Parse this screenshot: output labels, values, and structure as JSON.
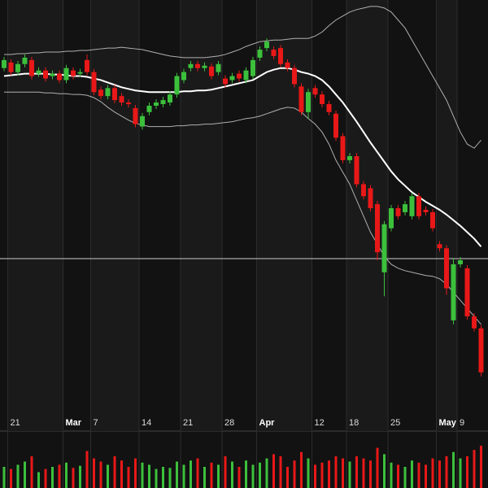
{
  "chart_data": {
    "type": "candlestick",
    "categories": [
      null,
      "21",
      null,
      null,
      null,
      null,
      null,
      null,
      null,
      "Mar",
      null,
      null,
      null,
      "7",
      null,
      null,
      null,
      null,
      null,
      null,
      "14",
      null,
      null,
      null,
      null,
      null,
      "21",
      null,
      null,
      null,
      null,
      null,
      "28",
      null,
      null,
      null,
      null,
      "Apr",
      null,
      null,
      null,
      null,
      null,
      null,
      null,
      "12",
      null,
      null,
      null,
      null,
      "18",
      null,
      null,
      null,
      null,
      null,
      "25",
      null,
      null,
      null,
      null,
      null,
      null,
      "May",
      null,
      null,
      "9",
      null,
      null,
      null
    ],
    "open": [
      435,
      442,
      430,
      440,
      445,
      428,
      432,
      425,
      428,
      420,
      432,
      428,
      445,
      430,
      408,
      400,
      410,
      400,
      392,
      385,
      362,
      380,
      388,
      390,
      392,
      402,
      420,
      435,
      440,
      435,
      437,
      430,
      422,
      420,
      428,
      420,
      425,
      448,
      460,
      458,
      460,
      442,
      435,
      412,
      380,
      410,
      402,
      390,
      378,
      350,
      320,
      325,
      290,
      285,
      265,
      180,
      235,
      260,
      255,
      250,
      275,
      258,
      255,
      215,
      210,
      120,
      190,
      185,
      125,
      110
    ],
    "high": [
      449,
      446,
      444,
      452,
      449,
      436,
      436,
      432,
      432,
      439,
      436,
      434,
      452,
      434,
      412,
      414,
      414,
      404,
      396,
      389,
      379,
      392,
      396,
      399,
      406,
      429,
      434,
      444,
      444,
      442,
      441,
      444,
      426,
      429,
      432,
      436,
      449,
      462,
      472,
      462,
      464,
      446,
      439,
      416,
      409,
      414,
      406,
      394,
      382,
      354,
      329,
      329,
      294,
      289,
      269,
      244,
      264,
      264,
      269,
      279,
      279,
      262,
      259,
      219,
      214,
      198,
      199,
      189,
      129,
      114
    ],
    "low": [
      431,
      426,
      426,
      436,
      421,
      424,
      418,
      421,
      416,
      416,
      421,
      424,
      426,
      401,
      396,
      396,
      391,
      388,
      386,
      361,
      358,
      376,
      384,
      386,
      388,
      398,
      416,
      431,
      431,
      431,
      421,
      426,
      411,
      416,
      418,
      416,
      421,
      444,
      456,
      446,
      436,
      431,
      411,
      376,
      372,
      398,
      386,
      376,
      344,
      316,
      316,
      286,
      271,
      256,
      195,
      150,
      231,
      246,
      251,
      246,
      246,
      251,
      231,
      206,
      152,
      115,
      186,
      121,
      106,
      50
    ],
    "close": [
      445,
      430,
      440,
      448,
      425,
      432,
      422,
      428,
      420,
      435,
      425,
      430,
      430,
      405,
      400,
      410,
      395,
      392,
      390,
      365,
      375,
      388,
      392,
      395,
      402,
      425,
      430,
      440,
      435,
      438,
      425,
      440,
      415,
      425,
      422,
      432,
      445,
      458,
      468,
      450,
      440,
      435,
      415,
      380,
      405,
      402,
      390,
      380,
      348,
      320,
      325,
      290,
      275,
      260,
      205,
      240,
      260,
      250,
      265,
      275,
      250,
      255,
      235,
      210,
      160,
      190,
      195,
      125,
      110,
      55
    ],
    "up_color": "#3cc03c",
    "down_color": "#e81818",
    "ylim": [
      0,
      520
    ],
    "series": [
      {
        "color": "#b0b0b0",
        "values": [
          452,
          452,
          453,
          453,
          454,
          454,
          455,
          455,
          455,
          456,
          456,
          457,
          457,
          458,
          459,
          460,
          460,
          461,
          460,
          459,
          458,
          456,
          454,
          452,
          450,
          449,
          448,
          448,
          448,
          448,
          449,
          450,
          452,
          455,
          458,
          462,
          465,
          468,
          469,
          470,
          470,
          471,
          472,
          472,
          472,
          475,
          480,
          488,
          495,
          500,
          505,
          508,
          510,
          512,
          512,
          510,
          505,
          495,
          485,
          470,
          455,
          440,
          425,
          410,
          395,
          375,
          355,
          340,
          335,
          345
        ]
      },
      {
        "color": "#ffffff",
        "values": [
          425,
          426,
          427,
          428,
          428,
          428,
          428,
          427,
          427,
          426,
          425,
          425,
          424,
          422,
          420,
          417,
          414,
          411,
          409,
          407,
          406,
          405,
          405,
          405,
          405,
          405,
          406,
          406,
          407,
          407,
          408,
          410,
          412,
          414,
          416,
          418,
          420,
          425,
          430,
          433,
          435,
          435,
          433,
          430,
          428,
          425,
          420,
          412,
          402,
          392,
          380,
          368,
          355,
          342,
          330,
          318,
          306,
          296,
          288,
          280,
          274,
          268,
          263,
          258,
          252,
          245,
          238,
          230,
          222,
          212
        ]
      },
      {
        "color": "#b0b0b0",
        "values": [
          405,
          405,
          405,
          405,
          405,
          405,
          404,
          404,
          403,
          403,
          402,
          402,
          401,
          398,
          393,
          386,
          380,
          375,
          370,
          366,
          364,
          362,
          362,
          362,
          362,
          363,
          363,
          364,
          364,
          365,
          365,
          366,
          367,
          368,
          370,
          372,
          373,
          375,
          378,
          381,
          384,
          386,
          385,
          380,
          372,
          365,
          355,
          340,
          320,
          305,
          290,
          270,
          250,
          230,
          215,
          200,
          190,
          185,
          182,
          180,
          178,
          176,
          175,
          172,
          165,
          155,
          145,
          135,
          125,
          115
        ]
      }
    ],
    "price_line": 197,
    "price_line_color": "#a8a8a8",
    "volume": [
      20,
      18,
      22,
      25,
      30,
      15,
      18,
      20,
      22,
      24,
      19,
      21,
      35,
      28,
      25,
      22,
      30,
      26,
      20,
      28,
      24,
      22,
      18,
      20,
      19,
      25,
      22,
      26,
      28,
      20,
      24,
      22,
      30,
      25,
      20,
      26,
      22,
      24,
      28,
      32,
      30,
      20,
      26,
      34,
      28,
      22,
      24,
      26,
      30,
      28,
      25,
      30,
      28,
      26,
      38,
      32,
      24,
      22,
      20,
      26,
      24,
      22,
      28,
      26,
      30,
      34,
      28,
      30,
      36,
      40
    ],
    "volume_ylim": [
      0,
      50
    ]
  }
}
